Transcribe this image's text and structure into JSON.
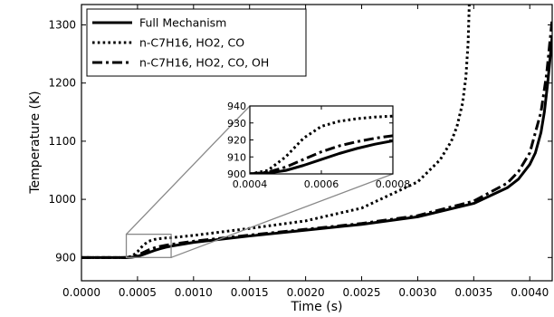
{
  "chart_data": {
    "type": "line",
    "xlabel": "Time (s)",
    "ylabel": "Temperature (K)",
    "xlim": [
      0.0,
      0.0042
    ],
    "ylim": [
      860,
      1335
    ],
    "xticks": [
      "0.0000",
      "0.0005",
      "0.0010",
      "0.0015",
      "0.0020",
      "0.0025",
      "0.0030",
      "0.0035",
      "0.0040"
    ],
    "yticks": [
      "900",
      "1000",
      "1100",
      "1200",
      "1300"
    ],
    "grid": false,
    "legend_position": "top-left",
    "series": [
      {
        "name": "Full Mechanism",
        "style": "solid",
        "color": "#000000",
        "x": [
          0.0,
          0.0004,
          0.00045,
          0.0005,
          0.00055,
          0.0006,
          0.00065,
          0.0007,
          0.00075,
          0.0008,
          0.001,
          0.0015,
          0.002,
          0.0025,
          0.003,
          0.0035,
          0.0038,
          0.0039,
          0.004,
          0.00405,
          0.0041,
          0.00413,
          0.00416,
          0.0042
        ],
        "y": [
          900,
          900,
          900.5,
          902,
          905,
          908.5,
          912,
          915,
          917.5,
          919.5,
          926,
          937,
          947,
          957,
          970,
          993,
          1020,
          1035,
          1060,
          1080,
          1115,
          1150,
          1200,
          1280
        ]
      },
      {
        "name": "n-C7H16, HO2, CO",
        "style": "dotted",
        "color": "#000000",
        "x": [
          0.0,
          0.0004,
          0.00045,
          0.0005,
          0.00055,
          0.0006,
          0.00065,
          0.0007,
          0.00075,
          0.0008,
          0.001,
          0.0015,
          0.002,
          0.0025,
          0.003,
          0.0032,
          0.0033,
          0.00335,
          0.0034,
          0.00343,
          0.00345,
          0.00346
        ],
        "y": [
          900,
          900,
          902,
          910,
          921,
          928,
          931,
          932.5,
          933.5,
          934,
          938,
          950,
          963,
          985,
          1030,
          1068,
          1100,
          1125,
          1165,
          1210,
          1270,
          1335
        ]
      },
      {
        "name": "n-C7H16, HO2, CO, OH",
        "style": "dashdot",
        "color": "#000000",
        "x": [
          0.0,
          0.0004,
          0.00045,
          0.0005,
          0.00055,
          0.0006,
          0.00065,
          0.0007,
          0.00075,
          0.0008,
          0.001,
          0.0015,
          0.002,
          0.0025,
          0.003,
          0.0035,
          0.0038,
          0.0039,
          0.004,
          0.0041,
          0.00415,
          0.0042
        ],
        "y": [
          900,
          900,
          901,
          904,
          908.5,
          913,
          916.5,
          919,
          921,
          922.5,
          928,
          938.5,
          948.5,
          958.5,
          972,
          997,
          1028,
          1048,
          1080,
          1150,
          1215,
          1310
        ]
      }
    ],
    "inset": {
      "xlim": [
        0.0004,
        0.0008
      ],
      "ylim": [
        900,
        940
      ],
      "xticks": [
        "0.0004",
        "0.0006",
        "0.0008"
      ],
      "yticks": [
        "900",
        "910",
        "920",
        "930",
        "940"
      ]
    }
  }
}
